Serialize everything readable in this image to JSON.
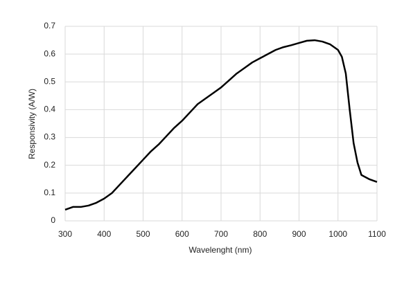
{
  "chart_data": {
    "type": "line",
    "xlabel": "Wavelenght (nm)",
    "ylabel": "Responsivity (A/W)",
    "x": [
      300,
      320,
      340,
      360,
      380,
      400,
      420,
      440,
      460,
      480,
      500,
      520,
      540,
      560,
      580,
      600,
      620,
      640,
      660,
      680,
      700,
      720,
      740,
      760,
      780,
      800,
      820,
      840,
      860,
      880,
      900,
      920,
      940,
      960,
      980,
      1000,
      1010,
      1020,
      1030,
      1040,
      1050,
      1060,
      1080,
      1100
    ],
    "series": [
      {
        "color": "#000000",
        "values": [
          0.04,
          0.05,
          0.05,
          0.055,
          0.065,
          0.08,
          0.1,
          0.13,
          0.16,
          0.19,
          0.22,
          0.25,
          0.275,
          0.305,
          0.335,
          0.36,
          0.39,
          0.42,
          0.44,
          0.46,
          0.48,
          0.505,
          0.53,
          0.55,
          0.57,
          0.585,
          0.6,
          0.615,
          0.625,
          0.632,
          0.64,
          0.648,
          0.65,
          0.645,
          0.635,
          0.615,
          0.59,
          0.53,
          0.4,
          0.28,
          0.21,
          0.165,
          0.15,
          0.14
        ]
      }
    ],
    "xlim": [
      300,
      1100
    ],
    "ylim": [
      0,
      0.7
    ],
    "xticks": [
      300,
      400,
      500,
      600,
      700,
      800,
      900,
      1000,
      1100
    ],
    "yticks": [
      0,
      0.1,
      0.2,
      0.3,
      0.4,
      0.5,
      0.6,
      0.7
    ],
    "grid": true
  }
}
